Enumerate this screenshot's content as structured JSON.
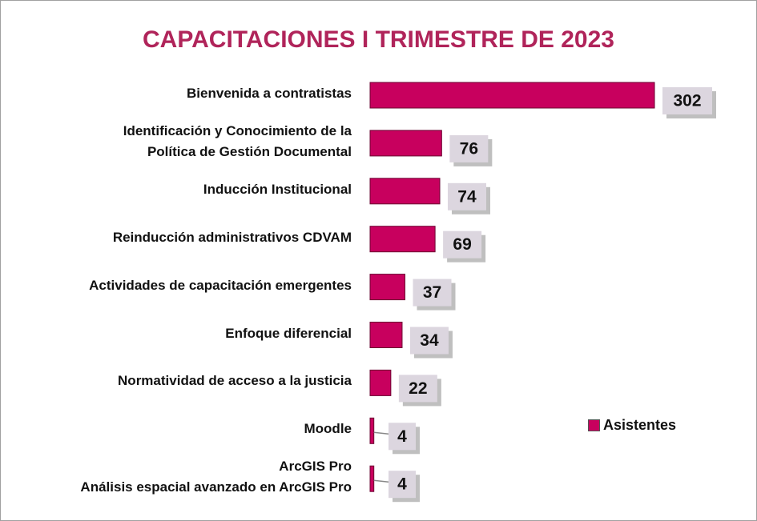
{
  "chart_data": {
    "type": "bar",
    "orientation": "horizontal",
    "title": "CAPACITACIONES I TRIMESTRE DE 2023",
    "categories": [
      "Bienvenida a contratistas",
      "Identificación y Conocimiento de la\nPolítica de Gestión Documental",
      "Inducción Institucional",
      "Reinducción administrativos CDVAM",
      "Actividades de capacitación emergentes",
      "Enfoque diferencial",
      "Normatividad de acceso a la justicia",
      "Moodle",
      "ArcGIS Pro\nAnálisis espacial avanzado en ArcGIS Pro"
    ],
    "series": [
      {
        "name": "Asistentes",
        "color": "#c8005e",
        "values": [
          302,
          76,
          74,
          69,
          37,
          34,
          22,
          4,
          4
        ]
      }
    ],
    "xlim": [
      0,
      302
    ],
    "legend": "right"
  }
}
